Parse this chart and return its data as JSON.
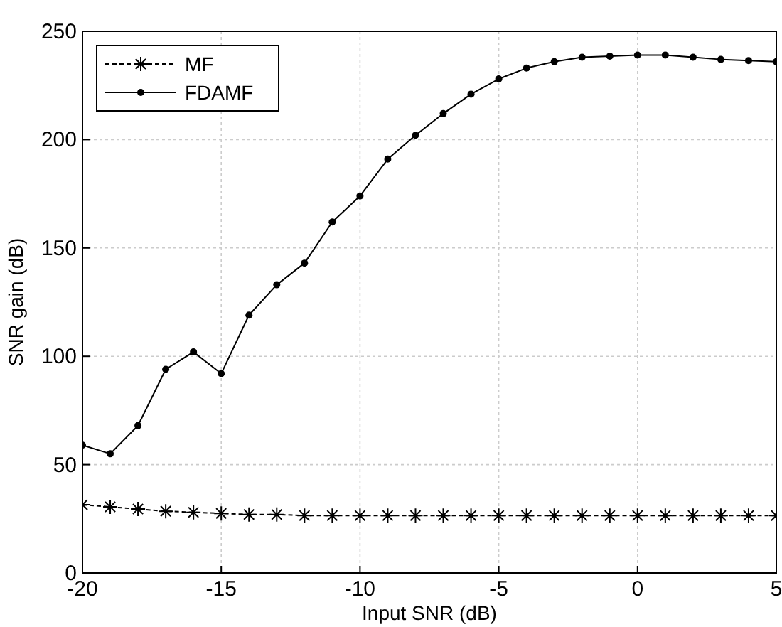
{
  "chart_data": {
    "type": "line",
    "xlabel": "Input SNR (dB)",
    "ylabel": "SNR gain (dB)",
    "x": [
      -20,
      -19,
      -18,
      -17,
      -16,
      -15,
      -14,
      -13,
      -12,
      -11,
      -10,
      -9,
      -8,
      -7,
      -6,
      -5,
      -4,
      -3,
      -2,
      -1,
      0,
      1,
      2,
      3,
      4,
      5
    ],
    "series": [
      {
        "name": "MF",
        "color": "#000000",
        "line_style": "dashed",
        "marker": "cross",
        "values": [
          31.5,
          30.5,
          29.5,
          28.5,
          28,
          27.5,
          27,
          27,
          26.5,
          26.5,
          26.5,
          26.5,
          26.5,
          26.5,
          26.5,
          26.5,
          26.5,
          26.5,
          26.5,
          26.5,
          26.5,
          26.5,
          26.5,
          26.5,
          26.5,
          26.5
        ]
      },
      {
        "name": "FDAMF",
        "color": "#000000",
        "line_style": "solid",
        "marker": "circle",
        "values": [
          59,
          55,
          68,
          94,
          102,
          92,
          119,
          133,
          143,
          162,
          174,
          191,
          202,
          212,
          221,
          228,
          233,
          236,
          238,
          238.5,
          239,
          239,
          238,
          237,
          236.5,
          236
        ]
      }
    ],
    "xlim": [
      -20,
      5
    ],
    "xticks": [
      -20,
      -15,
      -10,
      -5,
      0,
      5
    ],
    "ylim": [
      0,
      250
    ],
    "yticks": [
      0,
      50,
      100,
      150,
      200,
      250
    ],
    "grid": true,
    "legend": "top left"
  }
}
